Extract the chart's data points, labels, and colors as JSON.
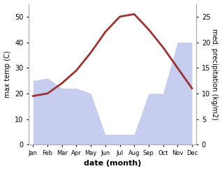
{
  "months": [
    "Jan",
    "Feb",
    "Mar",
    "Apr",
    "May",
    "Jun",
    "Jul",
    "Aug",
    "Sep",
    "Oct",
    "Nov",
    "Dec"
  ],
  "temp_max": [
    19,
    20,
    24,
    29,
    36,
    44,
    50,
    51,
    45,
    38,
    30,
    22
  ],
  "temp_color": "#993333",
  "precip_fill_color": "#b0b8e8",
  "precip_fill_alpha": 0.7,
  "xlabel": "date (month)",
  "ylabel_left": "max temp (C)",
  "ylabel_right": "med. precipitation (kg/m2)",
  "ylim_left": [
    0,
    55
  ],
  "ylim_right": [
    0,
    27.5
  ],
  "yticks_left": [
    0,
    10,
    20,
    30,
    40,
    50
  ],
  "yticks_right": [
    0,
    5,
    10,
    15,
    20,
    25
  ],
  "background_color": "#ffffff",
  "precip_scaled": [
    25,
    26,
    22,
    22,
    20,
    4,
    4,
    4,
    20,
    20,
    40,
    40
  ]
}
